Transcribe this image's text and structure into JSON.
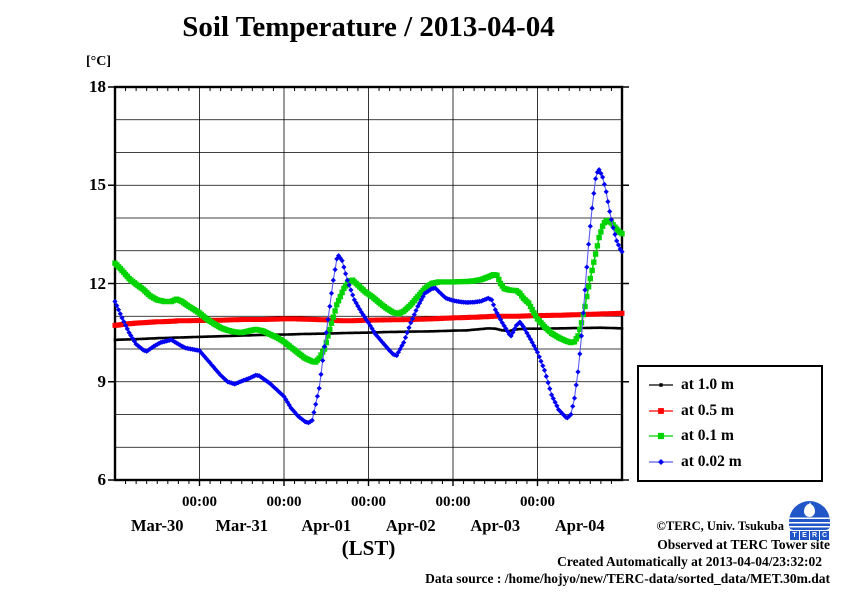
{
  "page_title": "Soil Temperature / 2013-04-04",
  "axes": {
    "y_unit": "[°C]",
    "x_label": "(LST)"
  },
  "footer": {
    "credit": "©TERC, Univ. Tsukuba",
    "observed": "Observed at TERC Tower site",
    "created": "Created Automatically at 2013-04-04/23:32:02",
    "datasource": "Data source : /home/hojyo/new/TERC-data/sorted_data/MET.30m.dat",
    "logo_letters": [
      "T",
      "E",
      "R",
      "C"
    ]
  },
  "chart_data": {
    "type": "line",
    "title": "Soil Temperature / 2013-04-04",
    "xlabel": "(LST)",
    "ylabel": "[°C]",
    "ylim": [
      6,
      18
    ],
    "y_major_ticks": [
      6,
      9,
      12,
      15,
      18
    ],
    "y_gridline_step_deg": 1,
    "grid": true,
    "x_range_hours": [
      0,
      144
    ],
    "x_start_date": "Mar-30 00:00",
    "x_gridline_every_hours": 24,
    "x_minor_tick_hours": 3,
    "x_midnight_labels": [
      "00:00",
      "00:00",
      "00:00",
      "00:00",
      "00:00"
    ],
    "x_day_labels": [
      "Mar-30",
      "Mar-31",
      "Apr-01",
      "Apr-02",
      "Apr-03",
      "Apr-04"
    ],
    "legend_position": "outside-right-bottom",
    "series": [
      {
        "name": "at 1.0 m",
        "color": "#000000",
        "marker": "dot",
        "marker_size": 1.3,
        "line_width": 1.7,
        "points": [
          [
            0,
            10.28
          ],
          [
            6,
            10.3
          ],
          [
            12,
            10.33
          ],
          [
            18,
            10.35
          ],
          [
            24,
            10.37
          ],
          [
            30,
            10.39
          ],
          [
            36,
            10.41
          ],
          [
            42,
            10.43
          ],
          [
            48,
            10.44
          ],
          [
            54,
            10.46
          ],
          [
            60,
            10.47
          ],
          [
            66,
            10.49
          ],
          [
            72,
            10.5
          ],
          [
            78,
            10.52
          ],
          [
            84,
            10.53
          ],
          [
            90,
            10.54
          ],
          [
            96,
            10.56
          ],
          [
            100,
            10.57
          ],
          [
            103,
            10.6
          ],
          [
            106,
            10.63
          ],
          [
            108,
            10.62
          ],
          [
            110,
            10.57
          ],
          [
            112,
            10.55
          ],
          [
            114,
            10.6
          ],
          [
            117,
            10.62
          ],
          [
            120,
            10.62
          ],
          [
            126,
            10.63
          ],
          [
            132,
            10.64
          ],
          [
            138,
            10.65
          ],
          [
            144,
            10.63
          ]
        ]
      },
      {
        "name": "at 0.5 m",
        "color": "#ff0000",
        "marker": "square",
        "marker_size": 2.5,
        "line_width": 1.4,
        "points": [
          [
            0,
            10.72
          ],
          [
            3,
            10.76
          ],
          [
            6,
            10.79
          ],
          [
            9,
            10.81
          ],
          [
            12,
            10.83
          ],
          [
            15,
            10.84
          ],
          [
            18,
            10.86
          ],
          [
            24,
            10.87
          ],
          [
            30,
            10.88
          ],
          [
            36,
            10.9
          ],
          [
            42,
            10.9
          ],
          [
            48,
            10.92
          ],
          [
            51,
            10.92
          ],
          [
            54,
            10.91
          ],
          [
            57,
            10.9
          ],
          [
            60,
            10.89
          ],
          [
            63,
            10.87
          ],
          [
            66,
            10.86
          ],
          [
            69,
            10.87
          ],
          [
            72,
            10.88
          ],
          [
            78,
            10.89
          ],
          [
            84,
            10.9
          ],
          [
            90,
            10.92
          ],
          [
            96,
            10.95
          ],
          [
            102,
            10.97
          ],
          [
            108,
            11.0
          ],
          [
            114,
            11.0
          ],
          [
            120,
            11.02
          ],
          [
            126,
            11.03
          ],
          [
            132,
            11.05
          ],
          [
            138,
            11.07
          ],
          [
            144,
            11.09
          ]
        ]
      },
      {
        "name": "at 0.1 m",
        "color": "#00d400",
        "marker": "square",
        "marker_size": 2.7,
        "line_width": 1.6,
        "points": [
          [
            0,
            12.62
          ],
          [
            2,
            12.4
          ],
          [
            4,
            12.15
          ],
          [
            6,
            11.98
          ],
          [
            8,
            11.82
          ],
          [
            10,
            11.62
          ],
          [
            12,
            11.5
          ],
          [
            14,
            11.45
          ],
          [
            16,
            11.45
          ],
          [
            17.5,
            11.52
          ],
          [
            19,
            11.45
          ],
          [
            21,
            11.3
          ],
          [
            24,
            11.1
          ],
          [
            26,
            10.92
          ],
          [
            28,
            10.78
          ],
          [
            30,
            10.65
          ],
          [
            32,
            10.57
          ],
          [
            34,
            10.52
          ],
          [
            36,
            10.5
          ],
          [
            38,
            10.55
          ],
          [
            40,
            10.6
          ],
          [
            42,
            10.55
          ],
          [
            44,
            10.45
          ],
          [
            46,
            10.35
          ],
          [
            48,
            10.22
          ],
          [
            50,
            10.05
          ],
          [
            52,
            9.88
          ],
          [
            54,
            9.72
          ],
          [
            56,
            9.62
          ],
          [
            57,
            9.6
          ],
          [
            58,
            9.72
          ],
          [
            59.5,
            10.0
          ],
          [
            61,
            10.6
          ],
          [
            63,
            11.35
          ],
          [
            65,
            11.85
          ],
          [
            66.5,
            12.08
          ],
          [
            67.5,
            12.1
          ],
          [
            69,
            11.95
          ],
          [
            71,
            11.75
          ],
          [
            73,
            11.6
          ],
          [
            75,
            11.42
          ],
          [
            77,
            11.25
          ],
          [
            79,
            11.12
          ],
          [
            80.5,
            11.08
          ],
          [
            82,
            11.15
          ],
          [
            84,
            11.35
          ],
          [
            86,
            11.6
          ],
          [
            88,
            11.85
          ],
          [
            90,
            12.0
          ],
          [
            92,
            12.05
          ],
          [
            96,
            12.05
          ],
          [
            100,
            12.06
          ],
          [
            102,
            12.08
          ],
          [
            104,
            12.12
          ],
          [
            106,
            12.2
          ],
          [
            107.5,
            12.27
          ],
          [
            108.5,
            12.25
          ],
          [
            109.5,
            12.0
          ],
          [
            110.5,
            11.85
          ],
          [
            112,
            11.8
          ],
          [
            114,
            11.78
          ],
          [
            115,
            11.7
          ],
          [
            116,
            11.55
          ],
          [
            117.5,
            11.4
          ],
          [
            119,
            11.1
          ],
          [
            120,
            10.92
          ],
          [
            122,
            10.68
          ],
          [
            124,
            10.48
          ],
          [
            126,
            10.35
          ],
          [
            128,
            10.25
          ],
          [
            129.5,
            10.2
          ],
          [
            130.5,
            10.22
          ],
          [
            131.5,
            10.4
          ],
          [
            132.5,
            10.8
          ],
          [
            133.5,
            11.3
          ],
          [
            134.5,
            11.9
          ],
          [
            135.5,
            12.4
          ],
          [
            136.5,
            12.9
          ],
          [
            137.5,
            13.4
          ],
          [
            138.5,
            13.75
          ],
          [
            139.2,
            13.9
          ],
          [
            140,
            13.92
          ],
          [
            141,
            13.85
          ],
          [
            142,
            13.72
          ],
          [
            143,
            13.6
          ],
          [
            144,
            13.52
          ]
        ]
      },
      {
        "name": "at 0.02 m",
        "color": "#0000f2",
        "line_color": "#5b5bf5",
        "marker": "diamond",
        "marker_size": 2.6,
        "line_width": 1.1,
        "points": [
          [
            0,
            11.45
          ],
          [
            2,
            10.95
          ],
          [
            4,
            10.5
          ],
          [
            6,
            10.15
          ],
          [
            8,
            9.97
          ],
          [
            9,
            9.93
          ],
          [
            11,
            10.08
          ],
          [
            13,
            10.2
          ],
          [
            16,
            10.28
          ],
          [
            18,
            10.15
          ],
          [
            20,
            10.03
          ],
          [
            24,
            9.95
          ],
          [
            26,
            9.7
          ],
          [
            28,
            9.45
          ],
          [
            30,
            9.2
          ],
          [
            32,
            9.0
          ],
          [
            34,
            8.93
          ],
          [
            36,
            9.02
          ],
          [
            38,
            9.1
          ],
          [
            40,
            9.2
          ],
          [
            41,
            9.18
          ],
          [
            44,
            8.95
          ],
          [
            48,
            8.55
          ],
          [
            50,
            8.2
          ],
          [
            52,
            7.95
          ],
          [
            54,
            7.78
          ],
          [
            55,
            7.75
          ],
          [
            56,
            7.82
          ],
          [
            58,
            8.8
          ],
          [
            60,
            10.5
          ],
          [
            62,
            12.1
          ],
          [
            63,
            12.75
          ],
          [
            63.5,
            12.85
          ],
          [
            64.5,
            12.7
          ],
          [
            66,
            12.1
          ],
          [
            68,
            11.5
          ],
          [
            70,
            11.12
          ],
          [
            72,
            10.8
          ],
          [
            74,
            10.45
          ],
          [
            76,
            10.2
          ],
          [
            78,
            9.95
          ],
          [
            79,
            9.84
          ],
          [
            80,
            9.8
          ],
          [
            82,
            10.2
          ],
          [
            84,
            10.8
          ],
          [
            86,
            11.3
          ],
          [
            88,
            11.7
          ],
          [
            90,
            11.84
          ],
          [
            91,
            11.86
          ],
          [
            92,
            11.75
          ],
          [
            94,
            11.55
          ],
          [
            96,
            11.48
          ],
          [
            98,
            11.44
          ],
          [
            100,
            11.42
          ],
          [
            102,
            11.43
          ],
          [
            104,
            11.46
          ],
          [
            106,
            11.55
          ],
          [
            107,
            11.5
          ],
          [
            108,
            11.2
          ],
          [
            110,
            10.8
          ],
          [
            112,
            10.45
          ],
          [
            112.5,
            10.4
          ],
          [
            114,
            10.72
          ],
          [
            115,
            10.82
          ],
          [
            116,
            10.68
          ],
          [
            118,
            10.3
          ],
          [
            120,
            9.9
          ],
          [
            122,
            9.35
          ],
          [
            124,
            8.6
          ],
          [
            126,
            8.15
          ],
          [
            128,
            7.92
          ],
          [
            128.5,
            7.9
          ],
          [
            129.5,
            8.0
          ],
          [
            130.5,
            8.5
          ],
          [
            131.5,
            9.3
          ],
          [
            132.5,
            10.4
          ],
          [
            133.5,
            11.8
          ],
          [
            134.5,
            13.2
          ],
          [
            135.5,
            14.3
          ],
          [
            136.5,
            15.2
          ],
          [
            137.3,
            15.52
          ],
          [
            138.5,
            15.25
          ],
          [
            139.5,
            14.8
          ],
          [
            140.5,
            14.2
          ],
          [
            141.5,
            13.7
          ],
          [
            142.5,
            13.3
          ],
          [
            143.5,
            13.05
          ],
          [
            144,
            12.97
          ]
        ]
      }
    ]
  }
}
